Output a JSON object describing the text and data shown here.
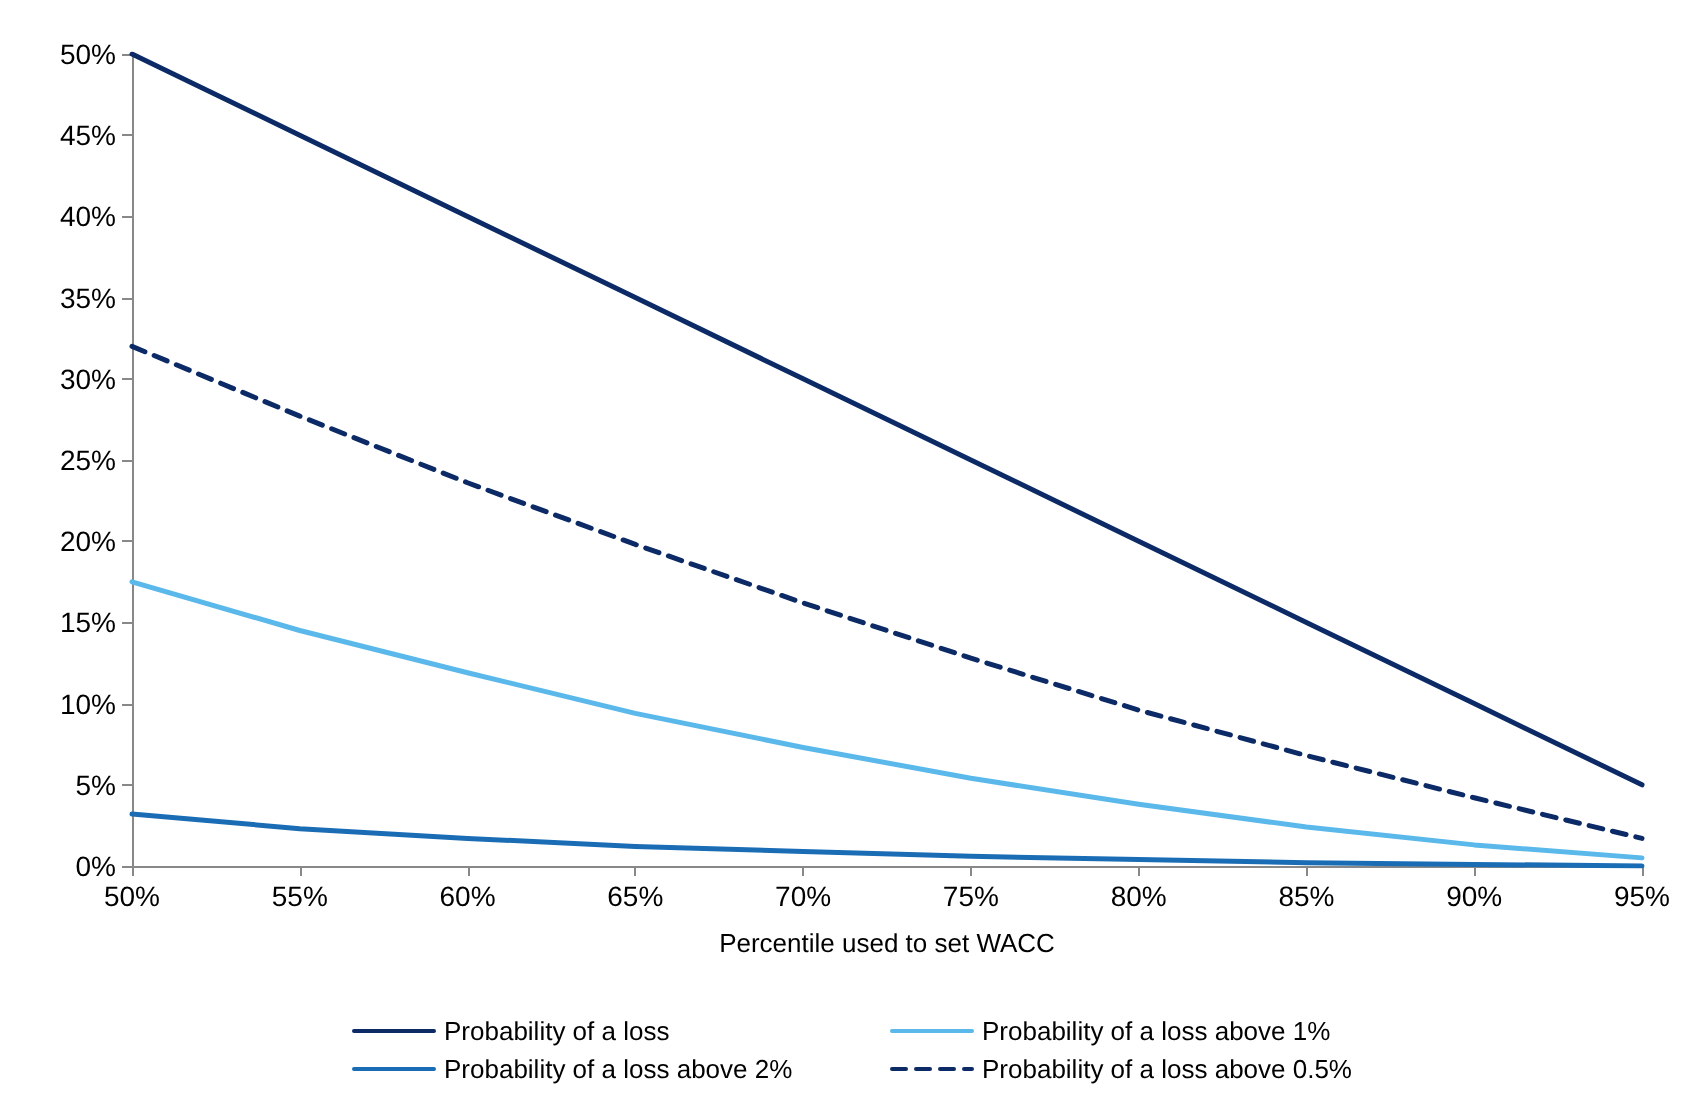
{
  "chart_data": {
    "type": "line",
    "xlabel": "Percentile used to set WACC",
    "x": [
      50,
      55,
      60,
      65,
      70,
      75,
      80,
      85,
      90,
      95
    ],
    "series": [
      {
        "name": "Probability of a loss",
        "color": "#0b2a66",
        "values": [
          50,
          45,
          40,
          35,
          30,
          25,
          20,
          15,
          10,
          5
        ]
      },
      {
        "name": "Probability of a loss above 1%",
        "color": "#5bb8ea",
        "values": [
          17.5,
          14.5,
          11.9,
          9.4,
          7.3,
          5.4,
          3.8,
          2.4,
          1.3,
          0.5
        ]
      },
      {
        "name": "Probability of a loss above 2%",
        "color": "#1a6db5",
        "values": [
          3.2,
          2.3,
          1.7,
          1.2,
          0.9,
          0.6,
          0.4,
          0.2,
          0.1,
          0
        ]
      },
      {
        "name": "Probability of a loss above 0.5%",
        "color": "#0b2a66",
        "line_style": "dashed",
        "values": [
          32,
          27.7,
          23.6,
          19.8,
          16.2,
          12.8,
          9.6,
          6.8,
          4.2,
          1.7
        ]
      }
    ],
    "xlim": [
      50,
      95
    ],
    "xticks": [
      {
        "value": 50,
        "label": "50%"
      },
      {
        "value": 55,
        "label": "55%"
      },
      {
        "value": 60,
        "label": "60%"
      },
      {
        "value": 65,
        "label": "65%"
      },
      {
        "value": 70,
        "label": "70%"
      },
      {
        "value": 75,
        "label": "75%"
      },
      {
        "value": 80,
        "label": "80%"
      },
      {
        "value": 85,
        "label": "85%"
      },
      {
        "value": 90,
        "label": "90%"
      },
      {
        "value": 95,
        "label": "95%"
      }
    ],
    "ylim": [
      0,
      50
    ],
    "yticks": [
      {
        "value": 0,
        "label": "0%"
      },
      {
        "value": 5,
        "label": "5%"
      },
      {
        "value": 10,
        "label": "10%"
      },
      {
        "value": 15,
        "label": "15%"
      },
      {
        "value": 20,
        "label": "20%"
      },
      {
        "value": 25,
        "label": "25%"
      },
      {
        "value": 30,
        "label": "30%"
      },
      {
        "value": 35,
        "label": "35%"
      },
      {
        "value": 40,
        "label": "40%"
      },
      {
        "value": 45,
        "label": "45%"
      },
      {
        "value": 50,
        "label": "50%"
      }
    ],
    "grid": false,
    "legend": "bottom",
    "marker": "none",
    "line_style": "solid"
  }
}
